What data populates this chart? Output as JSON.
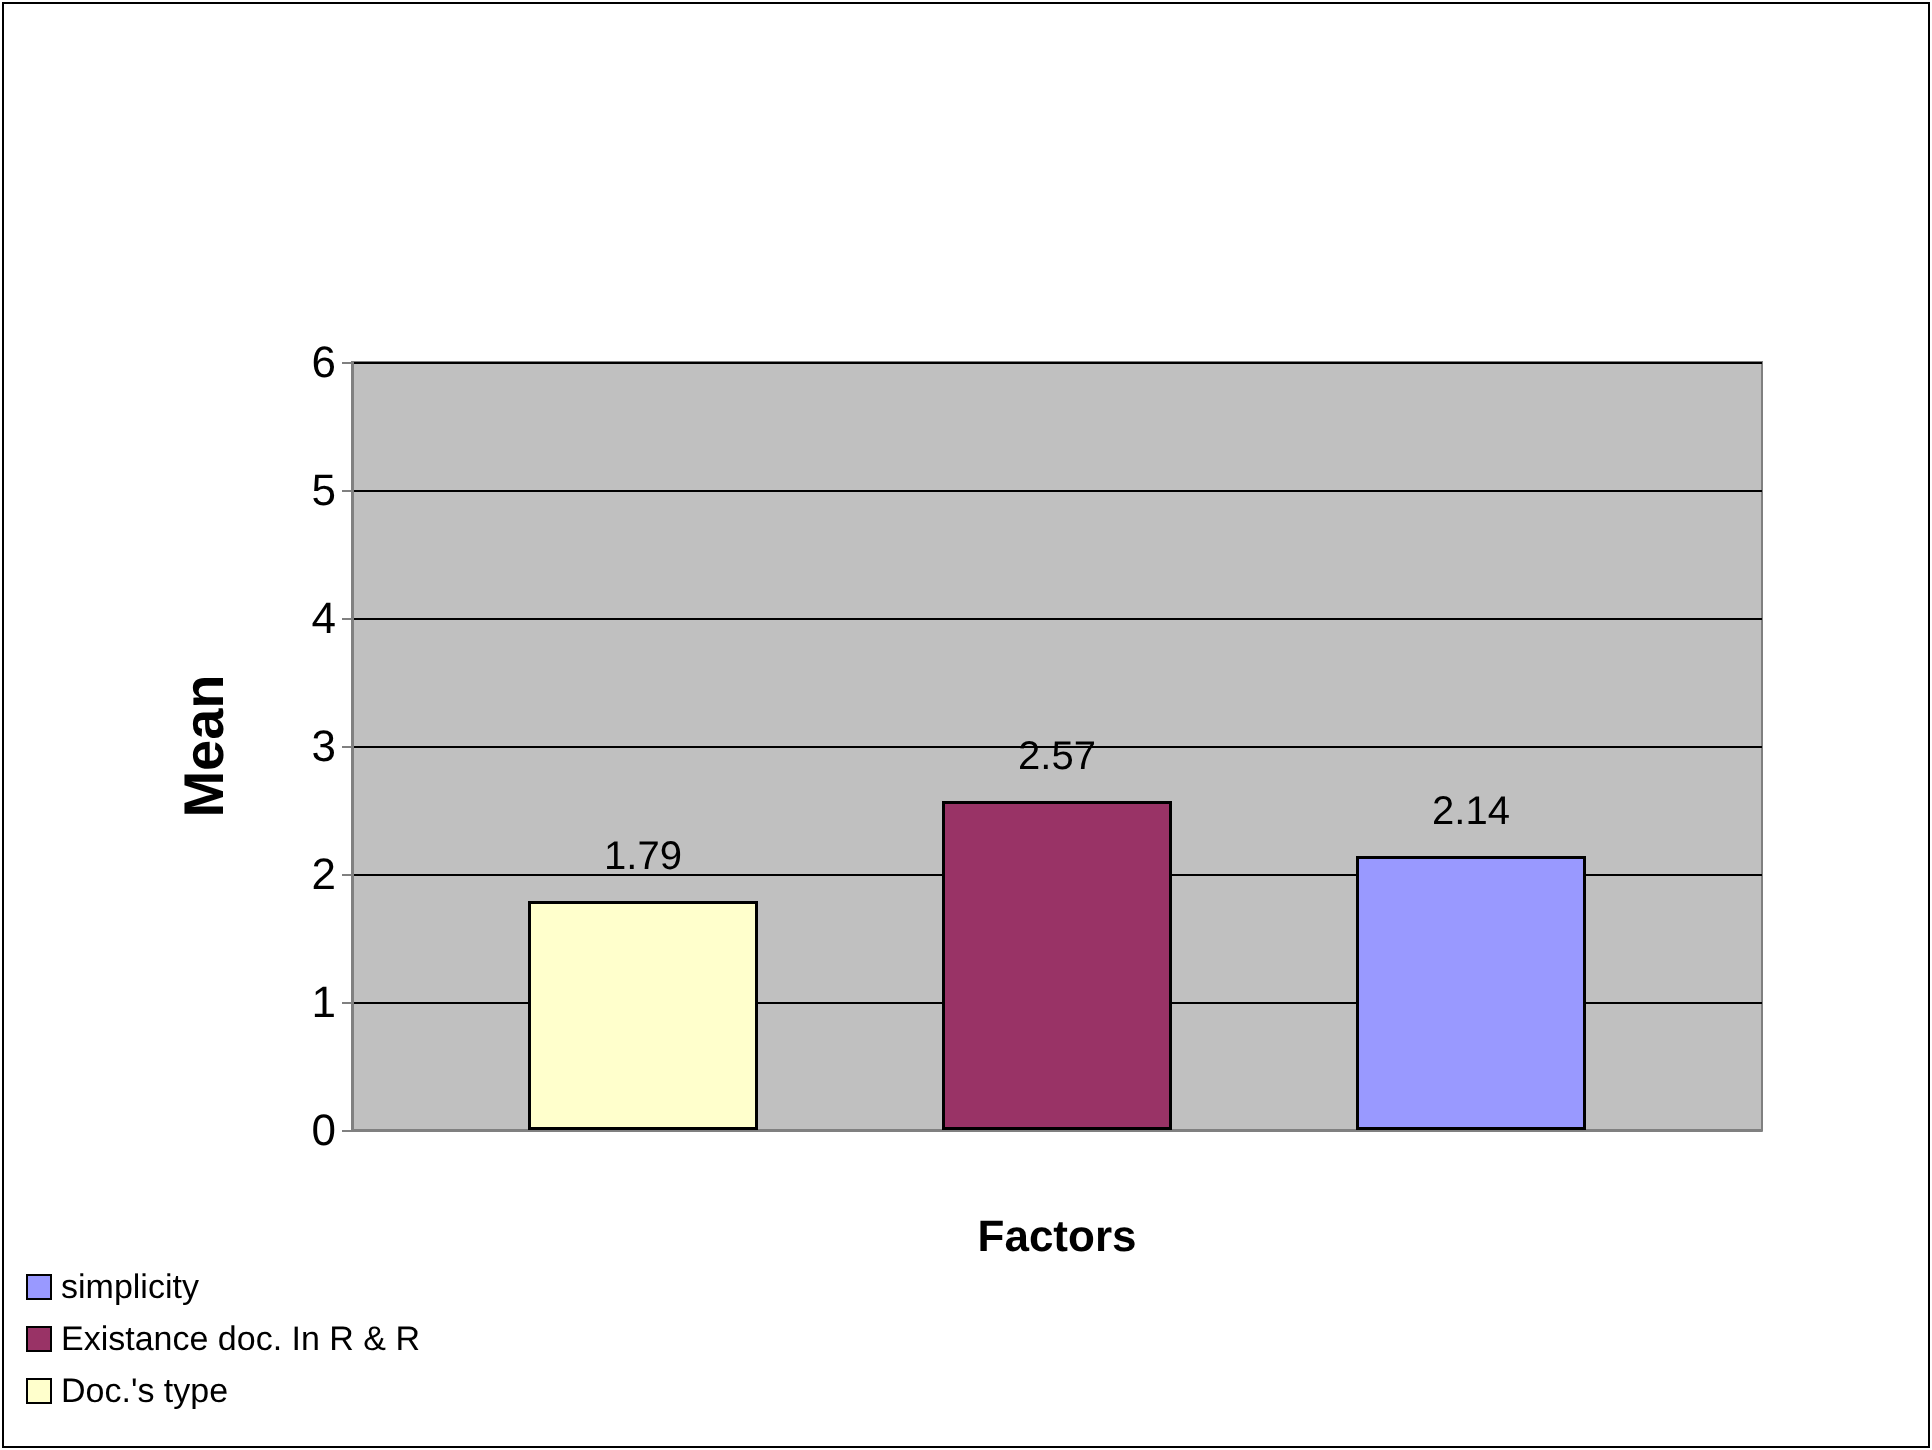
{
  "chart_data": {
    "type": "bar",
    "xlabel": "Factors",
    "ylabel": "Mean",
    "categories": [
      null
    ],
    "series": [
      {
        "name": "Doc.'s type",
        "color": "#ffffcc",
        "values": [
          1.79
        ]
      },
      {
        "name": "Existance doc. In R & R",
        "color": "#993366",
        "values": [
          2.57
        ]
      },
      {
        "name": "simplicity",
        "color": "#9999ff",
        "values": [
          2.14
        ]
      }
    ],
    "ylim": [
      0,
      6
    ],
    "yticks": [
      0,
      1,
      2,
      3,
      4,
      5,
      6
    ],
    "grid": "y",
    "legend": "bottom left",
    "data_labels": true
  }
}
